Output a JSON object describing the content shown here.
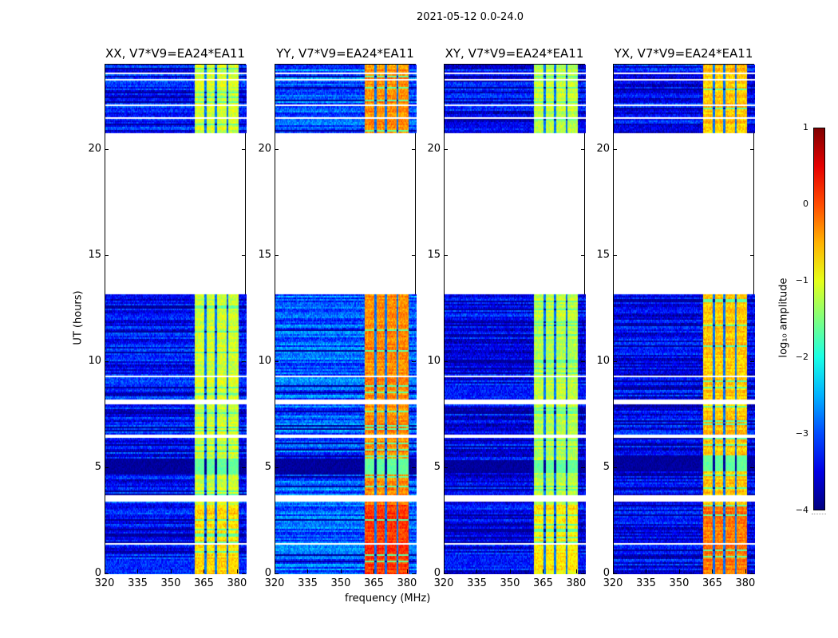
{
  "suptitle": "2021-05-12 0.0-24.0",
  "chart_data": {
    "type": "heatmap",
    "title": "2021-05-12 0.0-24.0",
    "xlabel": "frequency (MHz)",
    "ylabel": "UT (hours)",
    "xlim": [
      320,
      384
    ],
    "ylim": [
      0,
      24
    ],
    "xticks": [
      "320",
      "335",
      "350",
      "365",
      "380"
    ],
    "xtick_values": [
      320,
      335,
      350,
      365,
      380
    ],
    "yticks": [
      "0",
      "5",
      "10",
      "15",
      "20"
    ],
    "ytick_values": [
      0,
      5,
      10,
      15,
      20
    ],
    "panels": [
      {
        "title": "XX, V7*V9=EA24*EA11",
        "background_log_amp": -3.3,
        "band_log_amp": -1.1
      },
      {
        "title": "YY, V7*V9=EA24*EA11",
        "background_log_amp": -2.9,
        "band_log_amp": -0.3
      },
      {
        "title": "XY, V7*V9=EA24*EA11",
        "background_log_amp": -3.4,
        "band_log_amp": -1.2
      },
      {
        "title": "YX, V7*V9=EA24*EA11",
        "background_log_amp": -3.4,
        "band_log_amp": -0.6
      }
    ],
    "time_segments_hours": [
      [
        0,
        13.2
      ],
      [
        20.8,
        24
      ]
    ],
    "flagged_hours": [
      1.45,
      3.5,
      3.65,
      6.45,
      6.55,
      8.05,
      8.15,
      9.3,
      21.5,
      22.1,
      23.3,
      23.6
    ],
    "rfi_band_mhz": [
      360.5,
      380.5
    ],
    "channel_gaps_mhz": [
      365.3,
      370.2,
      375.3
    ],
    "colorbar": {
      "label": "log₁₀ amplitude",
      "range": [
        -4,
        1
      ],
      "ticks": [
        "1",
        "0",
        "−1",
        "−2",
        "−3",
        "−4"
      ],
      "tick_values": [
        1,
        0,
        -1,
        -2,
        -3,
        -4
      ],
      "colormap": "jet"
    }
  }
}
